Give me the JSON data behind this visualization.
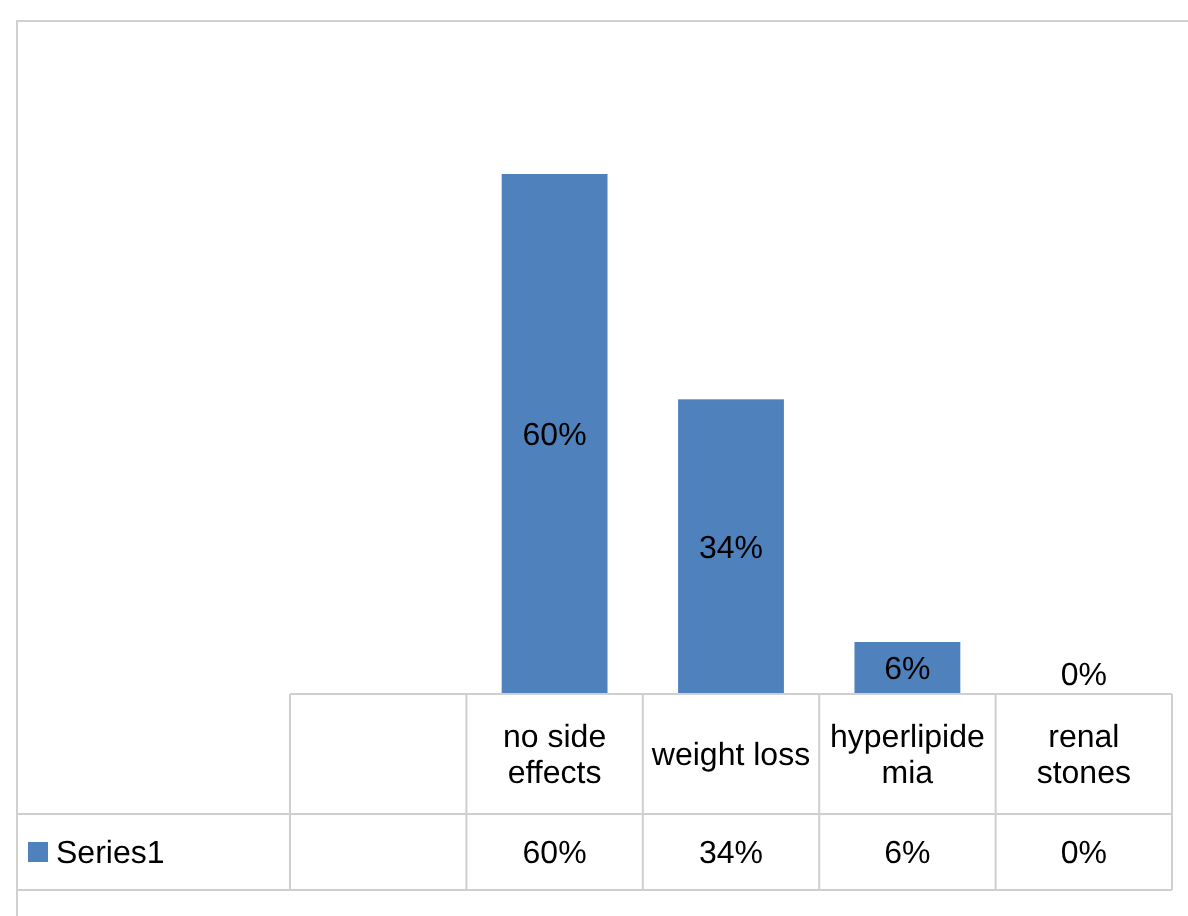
{
  "chart_data": {
    "type": "bar",
    "categories": [
      null,
      "no side effects",
      "weight loss",
      "hyperlipidemia",
      "renal stones"
    ],
    "series": [
      {
        "name": "Series1",
        "color": "#4f81bd",
        "values": [
          null,
          60,
          34,
          6,
          0
        ],
        "value_labels": [
          null,
          "60%",
          "34%",
          "6%",
          "0%"
        ]
      }
    ],
    "legend": "bottom"
  }
}
